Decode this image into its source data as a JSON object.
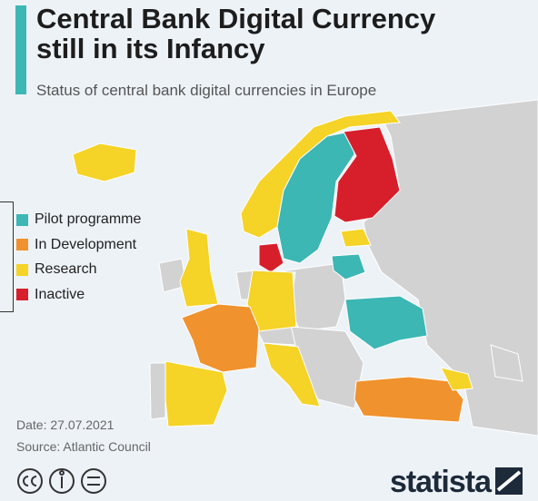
{
  "header": {
    "title": [
      "Central Bank Digital Currency",
      "still in its Infancy"
    ],
    "subtitle": "Status of central bank digital currencies in Europe"
  },
  "legend": [
    {
      "label": "Pilot programme",
      "color": "#3cb7b4"
    },
    {
      "label": "In Development",
      "color": "#f0922d"
    },
    {
      "label": "Research",
      "color": "#f5d327"
    },
    {
      "label": "Inactive",
      "color": "#d71f2c"
    }
  ],
  "footer": {
    "date": "Date: 27.07.2021",
    "source": "Source: Atlantic Council",
    "brand": "statista"
  }
}
